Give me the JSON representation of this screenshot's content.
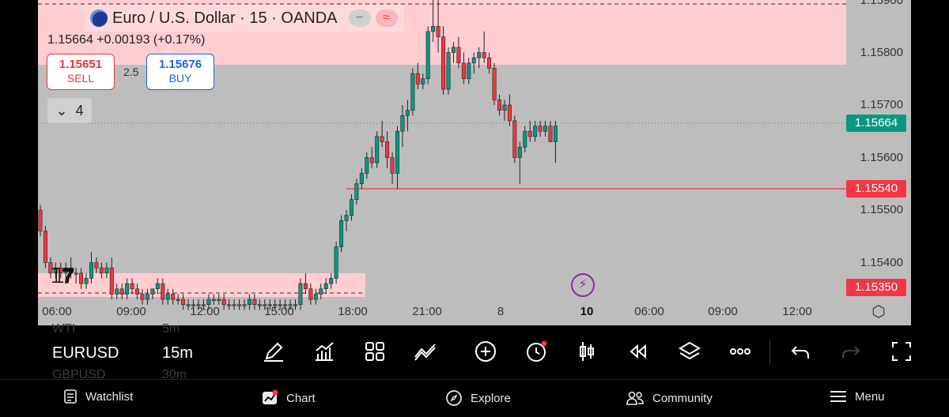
{
  "symbol": {
    "title": "Euro / U.S. Dollar · 15 · OANDA",
    "last": "1.15664",
    "change": "+0.00193 (+0.17%)"
  },
  "trade": {
    "sell_price": "1.15651",
    "sell_label": "SELL",
    "spread": "2.5",
    "buy_price": "1.15676",
    "buy_label": "BUY"
  },
  "indicators": {
    "count": "4"
  },
  "price_axis": {
    "labels": [
      "1.15900",
      "1.15800",
      "1.15700",
      "1.15600",
      "1.15500",
      "1.15400"
    ],
    "current_price": "1.15664",
    "line_price": "1.15540",
    "alert_price": "1.15350"
  },
  "time_axis": {
    "labels": [
      "06:00",
      "09:00",
      "12:00",
      "15:00",
      "18:00",
      "21:00",
      "8",
      "10",
      "06:00",
      "09:00",
      "12:00"
    ]
  },
  "colors": {
    "up": "#089981",
    "down": "#f23645",
    "zone": "#ffcdd2",
    "current_tag": "#089981",
    "line_tag": "#f23645"
  },
  "watchlist": {
    "symbol": "EURUSD",
    "interval": "15m",
    "ghost_top_symbol": "WTI",
    "ghost_top_interval": "5m",
    "ghost_bottom_symbol": "GBPUSD",
    "ghost_bottom_interval": "30m"
  },
  "bottom_nav": {
    "watchlist": "Watchlist",
    "chart": "Chart",
    "explore": "Explore",
    "community": "Community",
    "menu": "Menu"
  },
  "chart_data": {
    "type": "candlestick",
    "interval": "15m",
    "ylim": [
      1.1531,
      1.1591
    ],
    "candles": [
      [
        1.155,
        1.1551,
        1.1545,
        1.1546
      ],
      [
        1.1546,
        1.1547,
        1.1539,
        1.154
      ],
      [
        1.154,
        1.1541,
        1.1537,
        1.1538
      ],
      [
        1.1538,
        1.154,
        1.1537,
        1.1539
      ],
      [
        1.1539,
        1.154,
        1.1537,
        1.1538
      ],
      [
        1.1538,
        1.154,
        1.1536,
        1.1539
      ],
      [
        1.1539,
        1.1541,
        1.1537,
        1.1538
      ],
      [
        1.1538,
        1.1539,
        1.1536,
        1.1538
      ],
      [
        1.1538,
        1.1539,
        1.1535,
        1.1536
      ],
      [
        1.1536,
        1.1538,
        1.1535,
        1.1537
      ],
      [
        1.1537,
        1.1542,
        1.1536,
        1.154
      ],
      [
        1.154,
        1.1541,
        1.1538,
        1.1539
      ],
      [
        1.1539,
        1.154,
        1.1537,
        1.1538
      ],
      [
        1.1538,
        1.154,
        1.1537,
        1.1539
      ],
      [
        1.1539,
        1.1541,
        1.1533,
        1.1534
      ],
      [
        1.1534,
        1.1536,
        1.1533,
        1.1535
      ],
      [
        1.1535,
        1.1536,
        1.1533,
        1.1534
      ],
      [
        1.1534,
        1.1537,
        1.1533,
        1.1536
      ],
      [
        1.1536,
        1.1537,
        1.1534,
        1.1535
      ],
      [
        1.1535,
        1.1536,
        1.1533,
        1.1534
      ],
      [
        1.1534,
        1.1535,
        1.1532,
        1.1533
      ],
      [
        1.1533,
        1.1535,
        1.1532,
        1.1534
      ],
      [
        1.1534,
        1.1535,
        1.1533,
        1.1535
      ],
      [
        1.1535,
        1.1537,
        1.1534,
        1.1536
      ],
      [
        1.1536,
        1.1537,
        1.1532,
        1.1533
      ],
      [
        1.1533,
        1.1535,
        1.1532,
        1.1534
      ],
      [
        1.1534,
        1.1535,
        1.1532,
        1.1533
      ],
      [
        1.1533,
        1.1534,
        1.1532,
        1.1533
      ],
      [
        1.1533,
        1.1534,
        1.1531,
        1.1532
      ],
      [
        1.1532,
        1.1533,
        1.1531,
        1.1532
      ],
      [
        1.1532,
        1.1533,
        1.1531,
        1.1532
      ],
      [
        1.1532,
        1.1533,
        1.1531,
        1.1532
      ],
      [
        1.1532,
        1.1533,
        1.1531,
        1.1532
      ],
      [
        1.1532,
        1.1534,
        1.1531,
        1.1533
      ],
      [
        1.1533,
        1.1534,
        1.1532,
        1.1533
      ],
      [
        1.1533,
        1.1534,
        1.1532,
        1.1533
      ],
      [
        1.1533,
        1.1534,
        1.1531,
        1.1532
      ],
      [
        1.1532,
        1.1533,
        1.1531,
        1.1532
      ],
      [
        1.1532,
        1.1533,
        1.1531,
        1.1532
      ],
      [
        1.1532,
        1.1533,
        1.1531,
        1.1532
      ],
      [
        1.1532,
        1.1533,
        1.1531,
        1.1532
      ],
      [
        1.1532,
        1.1534,
        1.1531,
        1.1533
      ],
      [
        1.1533,
        1.1534,
        1.1531,
        1.1532
      ],
      [
        1.1532,
        1.1533,
        1.1531,
        1.1532
      ],
      [
        1.1532,
        1.1533,
        1.1531,
        1.1532
      ],
      [
        1.1532,
        1.1533,
        1.1531,
        1.1532
      ],
      [
        1.1532,
        1.1533,
        1.1531,
        1.1532
      ],
      [
        1.1532,
        1.1533,
        1.1531,
        1.1532
      ],
      [
        1.1532,
        1.1533,
        1.1531,
        1.1532
      ],
      [
        1.1532,
        1.1533,
        1.1531,
        1.1532
      ],
      [
        1.1532,
        1.1533,
        1.1531,
        1.1532
      ],
      [
        1.1532,
        1.1537,
        1.1531,
        1.1536
      ],
      [
        1.1536,
        1.1538,
        1.1534,
        1.1535
      ],
      [
        1.1535,
        1.1536,
        1.1532,
        1.1533
      ],
      [
        1.1533,
        1.1535,
        1.1532,
        1.1534
      ],
      [
        1.1534,
        1.1536,
        1.1533,
        1.1535
      ],
      [
        1.1535,
        1.1537,
        1.1534,
        1.1536
      ],
      [
        1.1536,
        1.1538,
        1.1535,
        1.1537
      ],
      [
        1.1537,
        1.1544,
        1.1536,
        1.1543
      ],
      [
        1.1543,
        1.1549,
        1.1542,
        1.1548
      ],
      [
        1.1548,
        1.155,
        1.1546,
        1.1549
      ],
      [
        1.1549,
        1.1553,
        1.1548,
        1.1552
      ],
      [
        1.1552,
        1.1556,
        1.1551,
        1.1555
      ],
      [
        1.1555,
        1.1558,
        1.1554,
        1.1557
      ],
      [
        1.1557,
        1.1561,
        1.1556,
        1.156
      ],
      [
        1.156,
        1.1562,
        1.1558,
        1.1559
      ],
      [
        1.1559,
        1.1565,
        1.1558,
        1.1564
      ],
      [
        1.1564,
        1.1567,
        1.1562,
        1.1563
      ],
      [
        1.1563,
        1.1565,
        1.1558,
        1.156
      ],
      [
        1.156,
        1.1561,
        1.1555,
        1.1557
      ],
      [
        1.1557,
        1.1566,
        1.1554,
        1.1565
      ],
      [
        1.1565,
        1.157,
        1.1562,
        1.1568
      ],
      [
        1.1568,
        1.1571,
        1.1565,
        1.1569
      ],
      [
        1.1569,
        1.1577,
        1.1568,
        1.1576
      ],
      [
        1.1576,
        1.1578,
        1.1573,
        1.1574
      ],
      [
        1.1574,
        1.1576,
        1.1573,
        1.1575
      ],
      [
        1.1575,
        1.1585,
        1.1574,
        1.1584
      ],
      [
        1.1584,
        1.1591,
        1.1582,
        1.1585
      ],
      [
        1.1585,
        1.1591,
        1.158,
        1.1583
      ],
      [
        1.1583,
        1.1585,
        1.1572,
        1.1573
      ],
      [
        1.1573,
        1.1581,
        1.1572,
        1.158
      ],
      [
        1.158,
        1.1582,
        1.1578,
        1.1581
      ],
      [
        1.1581,
        1.1583,
        1.1577,
        1.1578
      ],
      [
        1.1578,
        1.158,
        1.1574,
        1.1575
      ],
      [
        1.1575,
        1.1579,
        1.1574,
        1.1578
      ],
      [
        1.1578,
        1.158,
        1.1576,
        1.1579
      ],
      [
        1.1579,
        1.1581,
        1.1577,
        1.158
      ],
      [
        1.158,
        1.1584,
        1.1578,
        1.1579
      ],
      [
        1.1579,
        1.158,
        1.1576,
        1.1577
      ],
      [
        1.1577,
        1.1578,
        1.157,
        1.1571
      ],
      [
        1.1571,
        1.1572,
        1.1568,
        1.1569
      ],
      [
        1.1569,
        1.1571,
        1.1567,
        1.157
      ],
      [
        1.157,
        1.1572,
        1.1566,
        1.1567
      ],
      [
        1.1567,
        1.1568,
        1.1559,
        1.156
      ],
      [
        1.156,
        1.1563,
        1.1555,
        1.1562
      ],
      [
        1.1562,
        1.1566,
        1.1561,
        1.1565
      ],
      [
        1.1565,
        1.1567,
        1.1563,
        1.1564
      ],
      [
        1.1564,
        1.1567,
        1.1563,
        1.1566
      ],
      [
        1.1566,
        1.1567,
        1.1564,
        1.1565
      ],
      [
        1.1565,
        1.1567,
        1.1564,
        1.1566
      ],
      [
        1.1566,
        1.1567,
        1.1563,
        1.1563
      ],
      [
        1.1563,
        1.1567,
        1.1559,
        1.1566
      ]
    ]
  }
}
